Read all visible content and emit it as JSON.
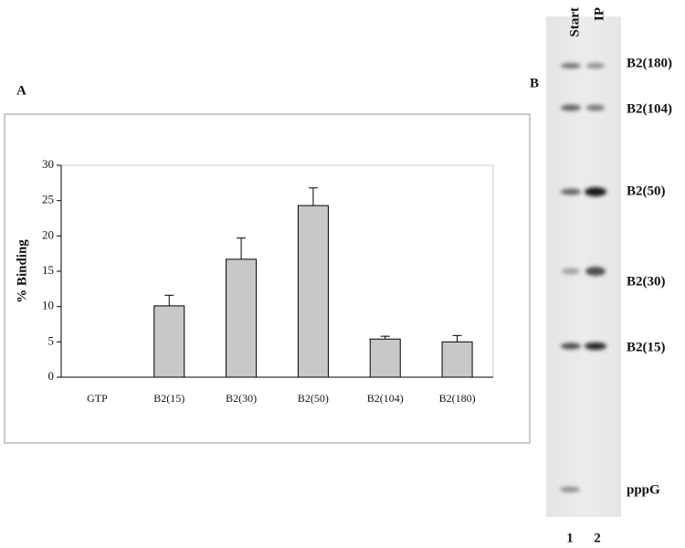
{
  "chart_data": {
    "type": "bar",
    "panel_label": "A",
    "ylabel": "% Binding",
    "categories": [
      "GTP",
      "B2(15)",
      "B2(30)",
      "B2(50)",
      "B2(104)",
      "B2(180)"
    ],
    "values": [
      0,
      10.1,
      16.7,
      24.3,
      5.4,
      5.0
    ],
    "errors": [
      0,
      1.5,
      3.0,
      2.5,
      0.4,
      0.9
    ],
    "color": "#c8c8c8",
    "ylim": [
      0,
      30
    ],
    "yticks": [
      0,
      5,
      10,
      15,
      20,
      25,
      30
    ]
  },
  "gel": {
    "panel_label": "B",
    "lanes": [
      "Start",
      "IP"
    ],
    "lane_numbers": [
      "1",
      "2"
    ],
    "bands": [
      "B2(180)",
      "B2(104)",
      "B2(50)",
      "B2(30)",
      "B2(15)",
      "pppG"
    ]
  }
}
